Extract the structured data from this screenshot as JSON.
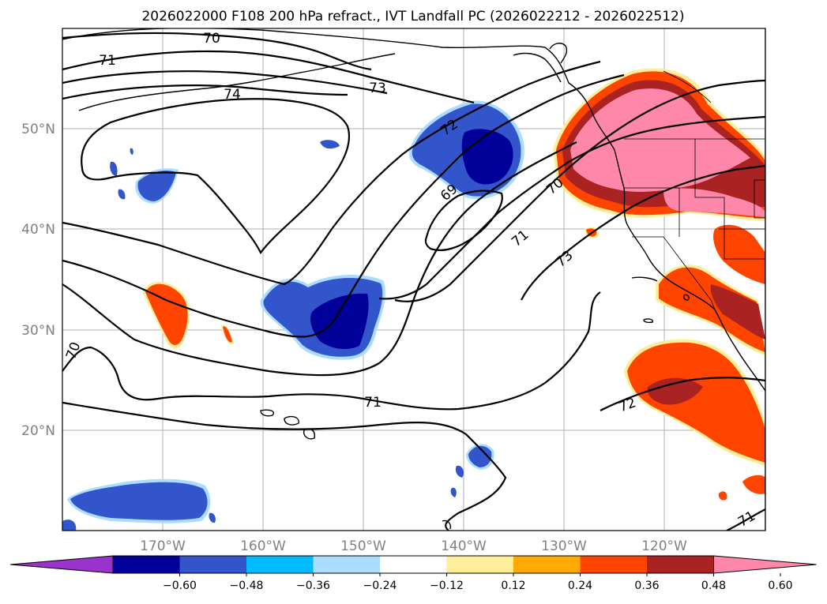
{
  "title": "2026022000 F108 200 hPa refract., IVT Landfall PC (2026022212 - 2026022512)",
  "lat_labels": [
    "50°N",
    "40°N",
    "30°N",
    "20°N"
  ],
  "lon_labels": [
    "170°W",
    "160°W",
    "150°W",
    "140°W",
    "130°W",
    "120°W"
  ],
  "contour_labels": [
    "70",
    "71",
    "74",
    "73",
    "72",
    "69",
    "70",
    "71",
    "73",
    "70",
    "71",
    "72",
    "71"
  ],
  "colorbar": {
    "colors": [
      "#9933cc",
      "#000099",
      "#3355cc",
      "#00bbff",
      "#aaddff",
      "#ffffff",
      "#ffee99",
      "#ffaa00",
      "#ff4400",
      "#aa2222",
      "#ff88aa"
    ],
    "tick_labels": [
      "−0.60",
      "−0.48",
      "−0.36",
      "−0.24",
      "−0.12",
      "0.12",
      "0.24",
      "0.36",
      "0.48",
      "0.60"
    ]
  }
}
